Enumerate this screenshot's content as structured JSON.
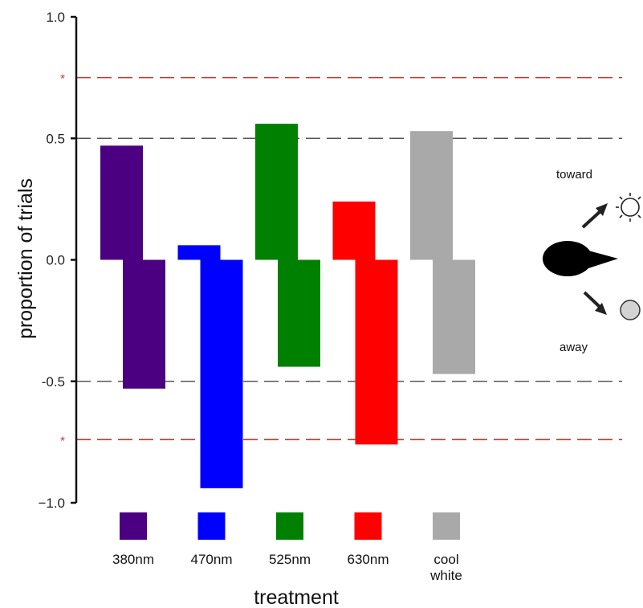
{
  "chart_data": {
    "type": "bar",
    "xlabel": "treatment",
    "ylabel": "proportion of trials",
    "ylim": [
      -1.0,
      1.0
    ],
    "yticks": [
      {
        "value": 1.0,
        "label": "1.0"
      },
      {
        "value": 0.5,
        "label": "0.5"
      },
      {
        "value": 0.0,
        "label": "0.0"
      },
      {
        "value": -0.5,
        "label": "-0.5"
      },
      {
        "value": -1.0,
        "label": "−1.0"
      }
    ],
    "reference_lines": [
      {
        "value": 0.5,
        "color": "#555555",
        "label": ""
      },
      {
        "value": -0.5,
        "color": "#555555",
        "label": ""
      },
      {
        "value": 0.75,
        "color": "#c0392b",
        "label": "*"
      },
      {
        "value": -0.74,
        "color": "#c0392b",
        "label": "*"
      }
    ],
    "categories": [
      {
        "label": "380nm",
        "label_lines": [
          "380nm"
        ],
        "color": "#4b0082",
        "toward": 0.47,
        "away": -0.53
      },
      {
        "label": "470nm",
        "label_lines": [
          "470nm"
        ],
        "color": "#0000ff",
        "toward": 0.06,
        "away": -0.94
      },
      {
        "label": "525nm",
        "label_lines": [
          "525nm"
        ],
        "color": "#008000",
        "toward": 0.56,
        "away": -0.44
      },
      {
        "label": "630nm",
        "label_lines": [
          "630nm"
        ],
        "color": "#ff0000",
        "toward": 0.24,
        "away": -0.76
      },
      {
        "label": "cool white",
        "label_lines": [
          "cool",
          "white"
        ],
        "color": "#a9a9a9",
        "toward": 0.53,
        "away": -0.47
      }
    ],
    "legend": {
      "toward_label": "toward",
      "away_label": "away"
    }
  }
}
